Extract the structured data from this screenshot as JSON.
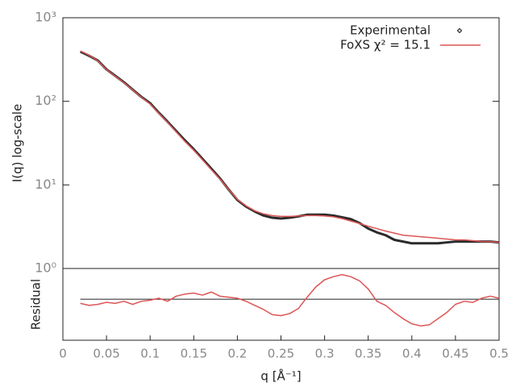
{
  "chart_data": [
    {
      "type": "line",
      "ylog": true,
      "ylabel": "I(q) log-scale",
      "xlim": [
        0,
        0.5
      ],
      "ylim": [
        1,
        1000
      ],
      "yticks": [
        {
          "value": 1,
          "label": "10⁰"
        },
        {
          "value": 10,
          "label": "10¹"
        },
        {
          "value": 100,
          "label": "10²"
        },
        {
          "value": 1000,
          "label": "10³"
        }
      ],
      "legend": "upper right",
      "x": [
        0.02,
        0.03,
        0.04,
        0.05,
        0.06,
        0.07,
        0.08,
        0.09,
        0.1,
        0.11,
        0.12,
        0.13,
        0.14,
        0.15,
        0.16,
        0.17,
        0.18,
        0.19,
        0.2,
        0.21,
        0.22,
        0.23,
        0.24,
        0.25,
        0.26,
        0.27,
        0.28,
        0.29,
        0.3,
        0.31,
        0.32,
        0.33,
        0.34,
        0.35,
        0.36,
        0.37,
        0.38,
        0.39,
        0.4,
        0.41,
        0.42,
        0.43,
        0.44,
        0.45,
        0.46,
        0.47,
        0.48,
        0.49,
        0.5
      ],
      "series": [
        {
          "name": "Experimental",
          "color": "#2b2b2b",
          "style": "points",
          "values": [
            393,
            351,
            308,
            241,
            202,
            169,
            138,
            113,
            95,
            73,
            57,
            44,
            34,
            26.7,
            20.5,
            15.7,
            12,
            8.8,
            6.6,
            5.5,
            4.8,
            4.3,
            4.05,
            3.96,
            4.05,
            4.2,
            4.4,
            4.4,
            4.4,
            4.3,
            4.1,
            3.9,
            3.5,
            3,
            2.7,
            2.5,
            2.2,
            2.1,
            2,
            2,
            2,
            2,
            2.05,
            2.1,
            2.1,
            2.1,
            2.1,
            2.1,
            2.05
          ]
        },
        {
          "name": "FoXS χ² = 15.1",
          "color": "#dd5555",
          "style": "line",
          "values": [
            400,
            355,
            305,
            240,
            200,
            167,
            137,
            112,
            93,
            72,
            56,
            43,
            33,
            26,
            20,
            15.3,
            11.8,
            8.8,
            6.7,
            5.6,
            4.9,
            4.5,
            4.3,
            4.2,
            4.2,
            4.25,
            4.3,
            4.3,
            4.25,
            4.15,
            3.95,
            3.7,
            3.45,
            3.2,
            3,
            2.8,
            2.65,
            2.5,
            2.45,
            2.4,
            2.35,
            2.3,
            2.25,
            2.2,
            2.2,
            2.15,
            2.1,
            2.1,
            2.05
          ]
        }
      ]
    },
    {
      "type": "line",
      "ylabel": "Residual",
      "xlabel": "q [Å⁻¹]",
      "xlim": [
        0,
        0.5
      ],
      "xticks": [
        0,
        0.05,
        0.1,
        0.15,
        0.2,
        0.25,
        0.3,
        0.35,
        0.4,
        0.45,
        0.5
      ],
      "ylim": [
        -4,
        3
      ],
      "hline": 0,
      "x": [
        0.02,
        0.03,
        0.04,
        0.05,
        0.06,
        0.07,
        0.08,
        0.09,
        0.1,
        0.11,
        0.12,
        0.13,
        0.14,
        0.15,
        0.16,
        0.17,
        0.18,
        0.19,
        0.2,
        0.21,
        0.22,
        0.23,
        0.24,
        0.25,
        0.26,
        0.27,
        0.28,
        0.29,
        0.3,
        0.31,
        0.32,
        0.33,
        0.34,
        0.35,
        0.36,
        0.37,
        0.38,
        0.39,
        0.4,
        0.41,
        0.42,
        0.43,
        0.44,
        0.45,
        0.46,
        0.47,
        0.48,
        0.49,
        0.5
      ],
      "series": [
        {
          "color": "#dd5555",
          "values": [
            -0.4,
            -0.6,
            -0.5,
            -0.3,
            -0.4,
            -0.2,
            -0.5,
            -0.2,
            -0.1,
            0.1,
            -0.2,
            0.3,
            0.5,
            0.6,
            0.4,
            0.7,
            0.3,
            0.2,
            0.1,
            -0.2,
            -0.6,
            -1.0,
            -1.5,
            -1.6,
            -1.4,
            -0.9,
            0.2,
            1.2,
            1.9,
            2.2,
            2.4,
            2.2,
            1.8,
            1.0,
            -0.2,
            -0.6,
            -1.3,
            -1.9,
            -2.4,
            -2.6,
            -2.5,
            -1.9,
            -1.3,
            -0.5,
            -0.2,
            -0.3,
            0.1,
            0.3,
            0.1
          ]
        }
      ]
    }
  ]
}
